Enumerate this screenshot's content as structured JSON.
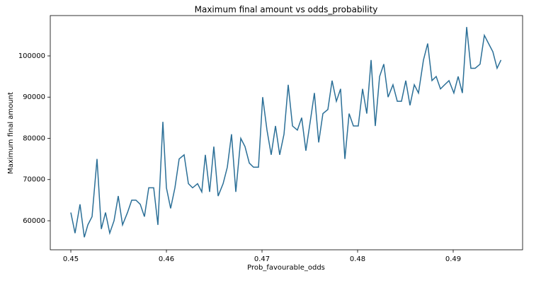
{
  "chart_data": {
    "type": "line",
    "title": "Maximum final amount vs odds_probability",
    "xlabel": "Prob_favourable_odds",
    "ylabel": "Maximum final amount",
    "color": "#2b6f97",
    "x": [
      0.45,
      0.45044,
      0.45096,
      0.45141,
      0.45178,
      0.45222,
      0.45274,
      0.45319,
      0.45363,
      0.45407,
      0.45452,
      0.45496,
      0.45541,
      0.45593,
      0.45637,
      0.45681,
      0.45726,
      0.4577,
      0.45815,
      0.45867,
      0.45911,
      0.45963,
      0.46,
      0.46044,
      0.46089,
      0.46133,
      0.46185,
      0.4623,
      0.46274,
      0.46326,
      0.4637,
      0.46407,
      0.46452,
      0.46496,
      0.46541,
      0.46593,
      0.46637,
      0.46681,
      0.46726,
      0.46778,
      0.46822,
      0.46867,
      0.46911,
      0.46963,
      0.47007,
      0.47052,
      0.47096,
      0.47141,
      0.47185,
      0.4723,
      0.47274,
      0.47319,
      0.4737,
      0.47415,
      0.47459,
      0.47504,
      0.47548,
      0.47593,
      0.47637,
      0.47689,
      0.47733,
      0.47778,
      0.47822,
      0.47867,
      0.47911,
      0.47956,
      0.48007,
      0.48052,
      0.48096,
      0.48141,
      0.48185,
      0.4823,
      0.48274,
      0.48319,
      0.4837,
      0.48415,
      0.48459,
      0.48504,
      0.48548,
      0.48593,
      0.48637,
      0.48689,
      0.48733,
      0.48778,
      0.48822,
      0.48867,
      0.48911,
      0.48956,
      0.49007,
      0.49052,
      0.49096,
      0.49141,
      0.49185,
      0.4923,
      0.49281,
      0.49326,
      0.4937,
      0.49415,
      0.49459,
      0.495
    ],
    "values": [
      62000,
      57000,
      64000,
      56000,
      59000,
      61000,
      75000,
      58000,
      62000,
      57000,
      60000,
      66000,
      59000,
      62000,
      65000,
      65000,
      64000,
      61000,
      68000,
      68000,
      59000,
      84000,
      68000,
      63000,
      68000,
      75000,
      76000,
      69000,
      68000,
      69000,
      67000,
      76000,
      67000,
      78000,
      66000,
      69000,
      73000,
      81000,
      67000,
      80000,
      78000,
      74000,
      73000,
      73000,
      90000,
      82000,
      76000,
      83000,
      76000,
      81000,
      93000,
      83000,
      82000,
      85000,
      77000,
      84000,
      91000,
      79000,
      86000,
      87000,
      94000,
      89000,
      92000,
      75000,
      86000,
      83000,
      83000,
      92000,
      86000,
      99000,
      83000,
      95000,
      98000,
      90000,
      93000,
      89000,
      89000,
      94000,
      88000,
      93000,
      91000,
      99000,
      103000,
      94000,
      95000,
      92000,
      93000,
      94000,
      91000,
      95000,
      91000,
      107000,
      97000,
      97000,
      98000,
      105000,
      103000,
      101000,
      97000,
      99000
    ],
    "xlim": [
      0.44785,
      0.49726
    ],
    "ylim": [
      52960,
      109785
    ],
    "xticks": [
      0.45,
      0.46,
      0.47,
      0.48,
      0.49
    ],
    "yticks": [
      60000,
      70000,
      80000,
      90000,
      100000
    ]
  }
}
